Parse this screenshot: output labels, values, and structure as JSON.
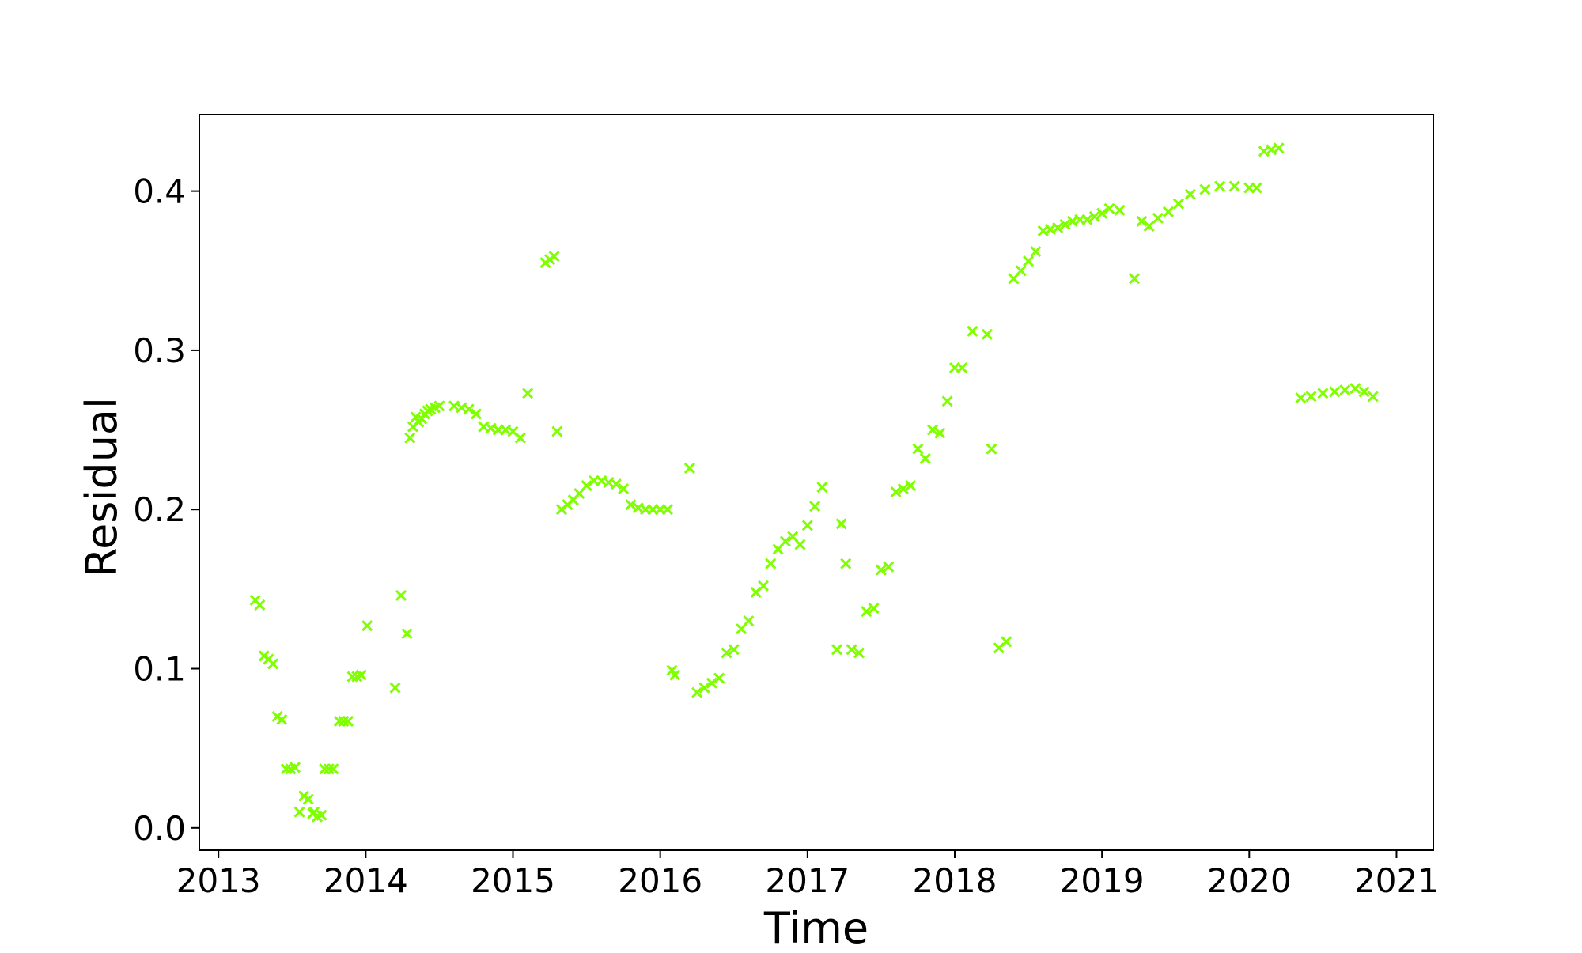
{
  "chart_data": {
    "type": "scatter",
    "title": "",
    "xlabel": "Time",
    "ylabel": "Residual",
    "xlim": [
      2012.87,
      2021.25
    ],
    "ylim": [
      -0.014,
      0.448
    ],
    "xticks": [
      2013,
      2014,
      2015,
      2016,
      2017,
      2018,
      2019,
      2020,
      2021
    ],
    "xtick_labels": [
      "2013",
      "2014",
      "2015",
      "2016",
      "2017",
      "2018",
      "2019",
      "2020",
      "2021"
    ],
    "yticks": [
      0.0,
      0.1,
      0.2,
      0.3,
      0.4
    ],
    "ytick_labels": [
      "0.0",
      "0.1",
      "0.2",
      "0.3",
      "0.4"
    ],
    "grid": false,
    "marker": "x",
    "color": "#7fff00",
    "series": [
      {
        "x": [
          2013.25,
          2013.28,
          2013.31,
          2013.34,
          2013.37,
          2013.4,
          2013.43,
          2013.46,
          2013.49,
          2013.52,
          2013.55,
          2013.58,
          2013.61,
          2013.64,
          2013.65,
          2013.67,
          2013.7,
          2013.72,
          2013.75,
          2013.78,
          2013.82,
          2013.85,
          2013.88,
          2013.91,
          2013.94,
          2013.97,
          2014.01,
          2014.2,
          2014.24,
          2014.28,
          2014.3,
          2014.32,
          2014.34,
          2014.36,
          2014.38,
          2014.4,
          2014.42,
          2014.44,
          2014.47,
          2014.5,
          2014.6,
          2014.65,
          2014.7,
          2014.75,
          2014.8,
          2014.85,
          2014.9,
          2014.95,
          2015.0,
          2015.05,
          2015.1,
          2015.22,
          2015.25,
          2015.28,
          2015.3,
          2015.33,
          2015.37,
          2015.41,
          2015.45,
          2015.5,
          2015.55,
          2015.6,
          2015.65,
          2015.7,
          2015.75,
          2015.8,
          2015.85,
          2015.9,
          2015.95,
          2016.0,
          2016.05,
          2016.08,
          2016.1,
          2016.2,
          2016.25,
          2016.3,
          2016.35,
          2016.4,
          2016.45,
          2016.5,
          2016.55,
          2016.6,
          2016.65,
          2016.7,
          2016.75,
          2016.8,
          2016.85,
          2016.9,
          2016.95,
          2017.0,
          2017.05,
          2017.1,
          2017.2,
          2017.23,
          2017.26,
          2017.3,
          2017.35,
          2017.4,
          2017.45,
          2017.5,
          2017.55,
          2017.6,
          2017.65,
          2017.7,
          2017.75,
          2017.8,
          2017.85,
          2017.9,
          2017.95,
          2018.0,
          2018.05,
          2018.12,
          2018.22,
          2018.25,
          2018.3,
          2018.35,
          2018.4,
          2018.45,
          2018.5,
          2018.55,
          2018.6,
          2018.65,
          2018.7,
          2018.75,
          2018.8,
          2018.85,
          2018.9,
          2018.95,
          2019.0,
          2019.05,
          2019.12,
          2019.22,
          2019.27,
          2019.32,
          2019.38,
          2019.45,
          2019.52,
          2019.6,
          2019.7,
          2019.8,
          2019.9,
          2020.0,
          2020.05,
          2020.1,
          2020.15,
          2020.2,
          2020.35,
          2020.42,
          2020.5,
          2020.58,
          2020.65,
          2020.72,
          2020.78,
          2020.84
        ],
        "y": [
          0.143,
          0.14,
          0.108,
          0.106,
          0.103,
          0.07,
          0.068,
          0.037,
          0.037,
          0.038,
          0.01,
          0.02,
          0.018,
          0.009,
          0.01,
          0.007,
          0.008,
          0.037,
          0.037,
          0.037,
          0.067,
          0.067,
          0.067,
          0.095,
          0.095,
          0.096,
          0.127,
          0.088,
          0.146,
          0.122,
          0.245,
          0.252,
          0.258,
          0.255,
          0.257,
          0.26,
          0.262,
          0.263,
          0.264,
          0.265,
          0.265,
          0.264,
          0.263,
          0.26,
          0.252,
          0.251,
          0.25,
          0.25,
          0.249,
          0.245,
          0.273,
          0.355,
          0.357,
          0.359,
          0.249,
          0.2,
          0.203,
          0.206,
          0.21,
          0.215,
          0.218,
          0.218,
          0.217,
          0.216,
          0.213,
          0.203,
          0.201,
          0.2,
          0.2,
          0.2,
          0.2,
          0.099,
          0.096,
          0.226,
          0.085,
          0.088,
          0.091,
          0.094,
          0.11,
          0.112,
          0.125,
          0.13,
          0.148,
          0.152,
          0.166,
          0.175,
          0.18,
          0.183,
          0.178,
          0.19,
          0.202,
          0.214,
          0.112,
          0.191,
          0.166,
          0.112,
          0.11,
          0.136,
          0.138,
          0.162,
          0.164,
          0.211,
          0.213,
          0.215,
          0.238,
          0.232,
          0.25,
          0.248,
          0.268,
          0.289,
          0.289,
          0.312,
          0.31,
          0.238,
          0.113,
          0.117,
          0.345,
          0.35,
          0.356,
          0.362,
          0.375,
          0.376,
          0.377,
          0.379,
          0.381,
          0.382,
          0.382,
          0.384,
          0.386,
          0.389,
          0.388,
          0.345,
          0.381,
          0.378,
          0.383,
          0.387,
          0.392,
          0.398,
          0.401,
          0.403,
          0.403,
          0.402,
          0.402,
          0.425,
          0.426,
          0.427,
          0.27,
          0.271,
          0.273,
          0.274,
          0.275,
          0.276,
          0.274,
          0.271
        ]
      }
    ]
  }
}
